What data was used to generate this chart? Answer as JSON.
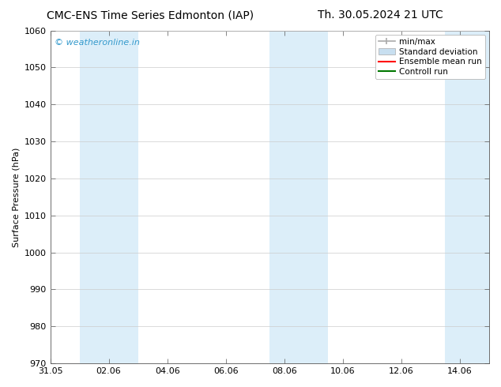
{
  "title_left": "CMC-ENS Time Series Edmonton (IAP)",
  "title_right": "Th. 30.05.2024 21 UTC",
  "ylabel": "Surface Pressure (hPa)",
  "ylim": [
    970,
    1060
  ],
  "yticks": [
    970,
    980,
    990,
    1000,
    1010,
    1020,
    1030,
    1040,
    1050,
    1060
  ],
  "xlim": [
    0,
    15
  ],
  "xtick_positions": [
    0,
    2,
    4,
    6,
    8,
    10,
    12,
    14
  ],
  "xtick_labels": [
    "31.05",
    "02.06",
    "04.06",
    "06.06",
    "08.06",
    "10.06",
    "12.06",
    "14.06"
  ],
  "shaded_bands": [
    {
      "x_start": 1.0,
      "x_end": 3.0,
      "color": "#dceef9"
    },
    {
      "x_start": 7.5,
      "x_end": 9.5,
      "color": "#dceef9"
    },
    {
      "x_start": 13.5,
      "x_end": 15.0,
      "color": "#dceef9"
    }
  ],
  "background_color": "#ffffff",
  "watermark_text": "© weatheronline.in",
  "watermark_color": "#3399cc",
  "legend_items": [
    {
      "label": "min/max",
      "color": "#aaaaaa",
      "style": "errorbar"
    },
    {
      "label": "Standard deviation",
      "color": "#c8dff0",
      "style": "rect"
    },
    {
      "label": "Ensemble mean run",
      "color": "#ff0000",
      "style": "line"
    },
    {
      "label": "Controll run",
      "color": "#007700",
      "style": "line"
    }
  ],
  "title_fontsize": 10,
  "ylabel_fontsize": 8,
  "tick_fontsize": 8,
  "legend_fontsize": 7.5,
  "watermark_fontsize": 8
}
